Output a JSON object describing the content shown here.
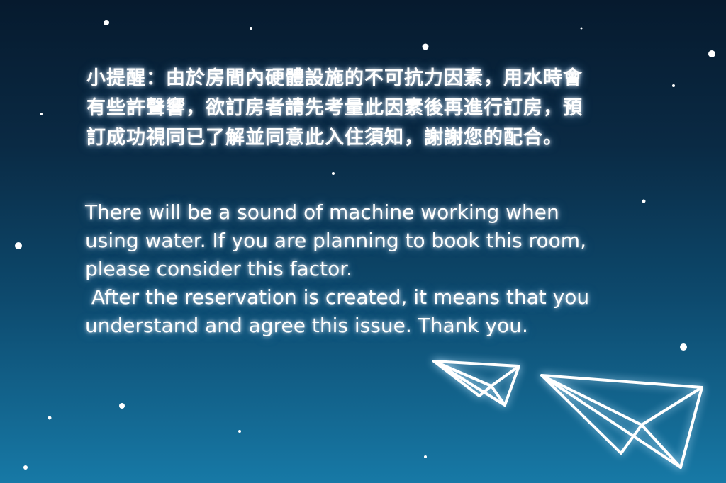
{
  "notice": {
    "chinese": "小提醒：由於房間內硬體設施的不可抗力因素，用水時會有些許聲響，欲訂房者請先考量此因素後再進行訂房，預訂成功視同已了解並同意此入住須知，謝謝您的配合。",
    "english": "There will be a sound of machine working when using water. If you are planning to book this room, please consider this factor.\n After the reservation is created, it means that you understand and agree this issue. Thank you."
  },
  "colors": {
    "background_top": "#061a2e",
    "background_bottom": "#1779a6",
    "text": "#ffffff"
  }
}
